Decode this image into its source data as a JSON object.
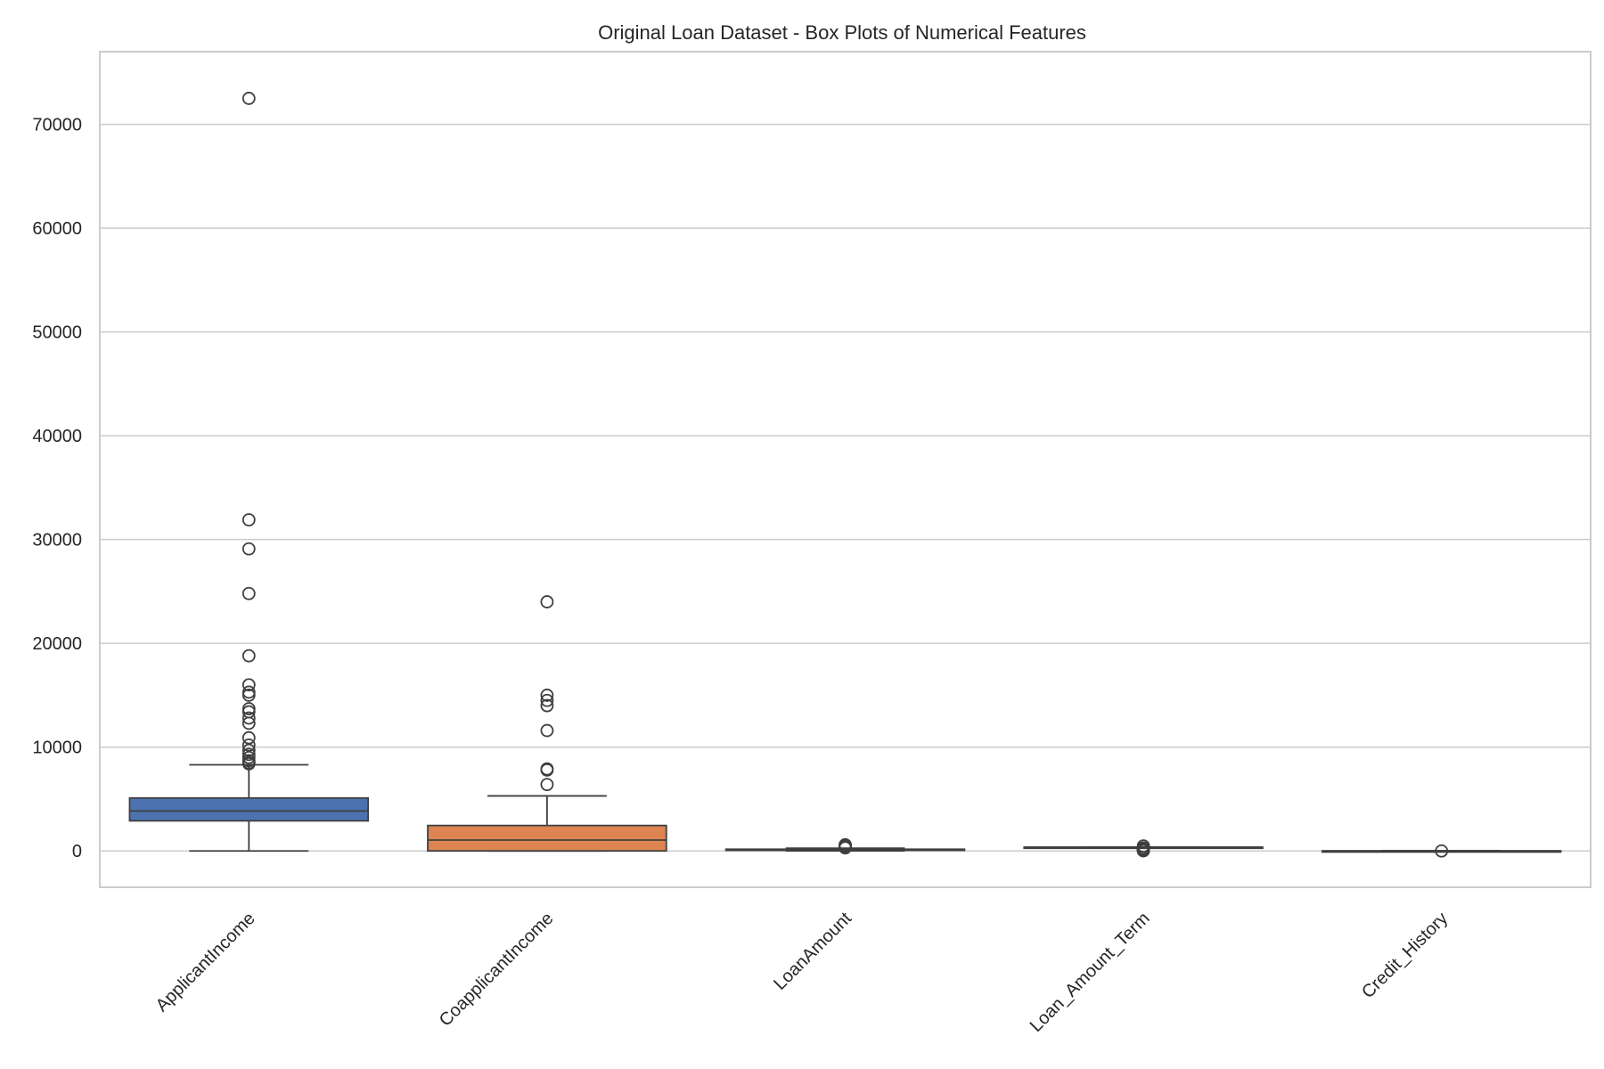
{
  "chart_data": {
    "type": "box",
    "title": "Original Loan Dataset - Box Plots of Numerical Features",
    "xlabel": "",
    "ylabel": "",
    "ylim": [
      -3500,
      77000
    ],
    "yticks": [
      0,
      10000,
      20000,
      30000,
      40000,
      50000,
      60000,
      70000
    ],
    "grid": "y",
    "categories": [
      "ApplicantIncome",
      "CoapplicantIncome",
      "LoanAmount",
      "Loan_Amount_Term",
      "Credit_History"
    ],
    "series": [
      {
        "category": "ApplicantIncome",
        "color": "#4c72b0",
        "min": 0,
        "q1": 2900,
        "median": 3850,
        "q3": 5100,
        "max": 8300,
        "outliers": [
          72500,
          31900,
          29100,
          24800,
          18800,
          16000,
          15300,
          15000,
          13700,
          13400,
          12800,
          12300,
          10900,
          10200,
          9700,
          9300,
          9000,
          8700,
          8500,
          8400
        ]
      },
      {
        "category": "CoapplicantIncome",
        "color": "#dd8452",
        "min": 0,
        "q1": 0,
        "median": 1050,
        "q3": 2450,
        "max": 5300,
        "outliers": [
          24000,
          15000,
          14500,
          14000,
          11600,
          7900,
          7800,
          6400
        ]
      },
      {
        "category": "LoanAmount",
        "color": "#55a868",
        "min": 9,
        "q1": 100,
        "median": 125,
        "q3": 165,
        "max": 260,
        "outliers": [
          600,
          500,
          480,
          400,
          350,
          300
        ]
      },
      {
        "category": "Loan_Amount_Term",
        "color": "#c44e52",
        "min": 360,
        "q1": 360,
        "median": 360,
        "q3": 360,
        "max": 360,
        "outliers": [
          480,
          300,
          240,
          180,
          120,
          84,
          60,
          36,
          12
        ]
      },
      {
        "category": "Credit_History",
        "color": "#8172b3",
        "min": 1,
        "q1": 1,
        "median": 1,
        "q3": 1,
        "max": 1,
        "outliers": [
          0
        ]
      }
    ]
  }
}
